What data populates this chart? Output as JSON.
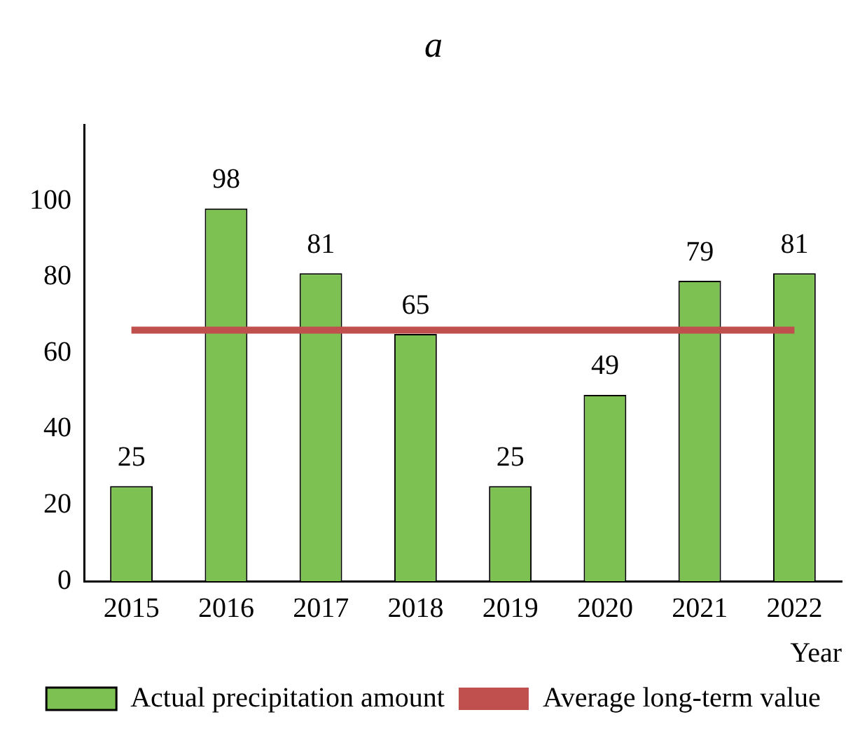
{
  "chart_data": {
    "type": "bar",
    "title": "a",
    "xlabel": "Year",
    "categories": [
      "2015",
      "2016",
      "2017",
      "2018",
      "2019",
      "2020",
      "2021",
      "2022"
    ],
    "series": [
      {
        "name": "Actual precipitation amount",
        "color": "#7dc152",
        "values": [
          25,
          98,
          81,
          65,
          25,
          49,
          79,
          81
        ],
        "value_labels": [
          "25",
          "98",
          "81",
          "65",
          "25",
          "49",
          "79",
          "81"
        ]
      },
      {
        "name": "Average long-term value",
        "type": "line",
        "color": "#c0504d",
        "values": [
          66,
          66,
          66,
          66,
          66,
          66,
          66,
          66
        ]
      }
    ],
    "ylim": [
      0,
      120
    ],
    "yticks": [
      0,
      20,
      40,
      60,
      80,
      100
    ],
    "grid": false,
    "legend": "bottom",
    "marker": "none"
  }
}
